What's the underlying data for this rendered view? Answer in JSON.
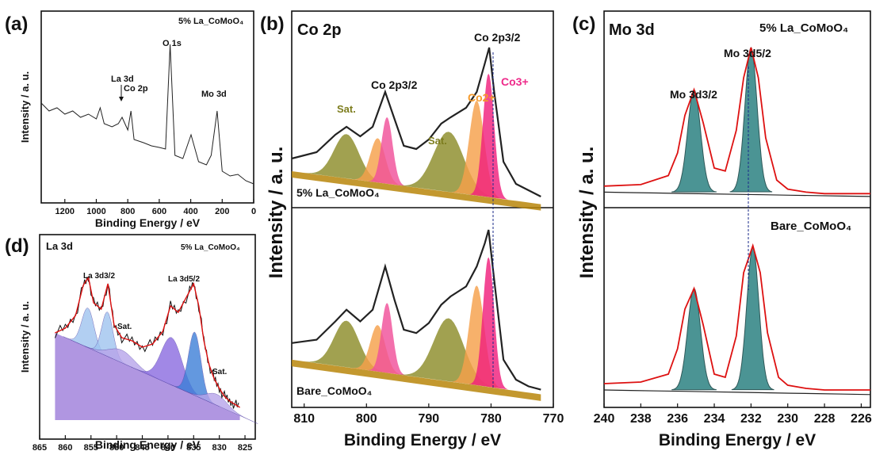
{
  "panels": [
    {
      "letter": "(a)",
      "title": "",
      "sample": "5% La_CoMoO₄",
      "xlabel": "Binding Energy / eV",
      "ylabel": "Intensity / a. u.",
      "xlim": [
        1350,
        0
      ],
      "xticks": [
        1200,
        1000,
        800,
        600,
        400,
        200,
        0
      ],
      "annotations": [
        {
          "text": "O 1s",
          "x": 531,
          "y": 0.85
        },
        {
          "text": "La 3d",
          "x": 836,
          "y": 0.62
        },
        {
          "text": "Co 2p",
          "x": 780,
          "y": 0.55
        },
        {
          "text": "Mo 3d",
          "x": 232,
          "y": 0.6
        }
      ]
    },
    {
      "letter": "(b)",
      "title": "Co 2p",
      "xlabel": "Binding Energy / eV",
      "ylabel": "Intensity / a. u.",
      "xlim": [
        812,
        770
      ],
      "xticks": [
        810,
        800,
        790,
        780,
        770
      ],
      "subpanels": [
        {
          "sample": "5% La_CoMoO₄",
          "annotations": [
            {
              "text": "Sat.",
              "x": 803.2,
              "y": 0.5
            },
            {
              "text": "Co 2p3/2",
              "x": 797,
              "y": 0.7
            },
            {
              "text": "Sat.",
              "x": 787,
              "y": 0.45
            },
            {
              "text": "Co2+",
              "x": 782.5,
              "y": 0.62
            },
            {
              "text": "Co3+",
              "x": 778.5,
              "y": 0.68
            },
            {
              "text": "Co 2p3/2",
              "x": 780.5,
              "y": 0.95
            }
          ]
        },
        {
          "sample": "Bare_CoMoO₄",
          "annotations": []
        }
      ]
    },
    {
      "letter": "(c)",
      "title": "Mo 3d",
      "xlabel": "Binding Energy / eV",
      "ylabel": "Intensity / a. u.",
      "xlim": [
        240,
        225.5
      ],
      "xticks": [
        240,
        238,
        236,
        234,
        232,
        230,
        228,
        226
      ],
      "subpanels": [
        {
          "sample": "5% La_CoMoO₄",
          "annotations": [
            {
              "text": "Mo 3d3/2",
              "x": 235.1,
              "y": 0.62
            },
            {
              "text": "Mo 3d5/2",
              "x": 232.0,
              "y": 0.85
            }
          ]
        },
        {
          "sample": "Bare_CoMoO₄",
          "annotations": []
        }
      ]
    },
    {
      "letter": "(d)",
      "title": "La 3d",
      "sample": "5% La_CoMoO₄",
      "xlabel": "Binding Energy / eV",
      "ylabel": "Intensity / a. u.",
      "xlim": [
        865,
        823
      ],
      "xticks": [
        865,
        860,
        855,
        850,
        845,
        840,
        835,
        830,
        825
      ],
      "annotations": [
        {
          "text": "La 3d3/2",
          "x": 855.5,
          "y": 0.82
        },
        {
          "text": "Sat.",
          "x": 849,
          "y": 0.55
        },
        {
          "text": "La 3d5/2",
          "x": 836,
          "y": 0.8
        },
        {
          "text": "Sat.",
          "x": 829,
          "y": 0.3
        }
      ]
    }
  ],
  "chart_data": [
    {
      "type": "line",
      "panel": "(a)",
      "sample": "5% La_CoMoO₄",
      "xlabel": "Binding Energy / eV",
      "ylabel": "Intensity / a. u.",
      "xlim": [
        1350,
        0
      ],
      "series": [
        {
          "x": [
            1350,
            1300,
            1250,
            1200,
            1150,
            1100,
            1050,
            1000,
            975,
            950,
            900,
            860,
            836,
            800,
            780,
            760,
            700,
            650,
            600,
            560,
            531,
            500,
            450,
            398,
            350,
            300,
            270,
            232,
            200,
            150,
            100,
            50,
            0
          ],
          "y": [
            0.55,
            0.5,
            0.52,
            0.48,
            0.5,
            0.46,
            0.48,
            0.45,
            0.52,
            0.42,
            0.4,
            0.42,
            0.46,
            0.38,
            0.5,
            0.32,
            0.3,
            0.28,
            0.27,
            0.26,
            0.92,
            0.22,
            0.2,
            0.35,
            0.18,
            0.16,
            0.22,
            0.5,
            0.12,
            0.09,
            0.1,
            0.06,
            0.04
          ]
        }
      ]
    },
    {
      "type": "line",
      "panel": "(b) top",
      "sample": "5% La_CoMoO₄",
      "xlabel": "Binding Energy / eV",
      "xlim": [
        812,
        770
      ],
      "series": [
        {
          "x": [
            812,
            808,
            805,
            803.2,
            801,
            799,
            797,
            795.5,
            794,
            792,
            790,
            788,
            786.5,
            784,
            782.3,
            781,
            780.3,
            779.5,
            778,
            776,
            774,
            772
          ],
          "y": [
            0.3,
            0.34,
            0.45,
            0.5,
            0.44,
            0.5,
            0.72,
            0.55,
            0.38,
            0.36,
            0.42,
            0.52,
            0.56,
            0.62,
            0.72,
            0.9,
            1.0,
            0.72,
            0.28,
            0.14,
            0.1,
            0.06
          ]
        }
      ]
    },
    {
      "type": "line",
      "panel": "(b) bottom",
      "sample": "Bare_CoMoO₄",
      "xlabel": "Binding Energy / eV",
      "xlim": [
        812,
        770
      ],
      "series": [
        {
          "x": [
            812,
            808,
            805,
            803.2,
            801,
            799,
            797,
            795.5,
            794,
            792,
            790,
            788,
            786.5,
            784,
            782.3,
            781,
            780.4,
            779.5,
            778,
            776,
            774,
            772
          ],
          "y": [
            0.32,
            0.34,
            0.45,
            0.52,
            0.45,
            0.52,
            0.78,
            0.58,
            0.4,
            0.38,
            0.44,
            0.55,
            0.6,
            0.66,
            0.78,
            0.92,
            1.0,
            0.7,
            0.22,
            0.1,
            0.06,
            0.04
          ]
        }
      ]
    },
    {
      "type": "line",
      "panel": "(c) top",
      "sample": "5% La_CoMoO₄",
      "xlabel": "Binding Energy / eV",
      "xlim": [
        240,
        225.5
      ],
      "series": [
        {
          "x": [
            240,
            238,
            236.5,
            236,
            235.6,
            235.1,
            234.6,
            234,
            233.4,
            232.8,
            232.4,
            232.0,
            231.6,
            231.2,
            230.6,
            230,
            229,
            228,
            226,
            225.5
          ],
          "y": [
            0.08,
            0.09,
            0.15,
            0.3,
            0.55,
            0.72,
            0.5,
            0.2,
            0.18,
            0.45,
            0.8,
            1.0,
            0.8,
            0.4,
            0.12,
            0.06,
            0.04,
            0.03,
            0.03,
            0.03
          ]
        }
      ]
    },
    {
      "type": "line",
      "panel": "(c) bottom",
      "sample": "Bare_CoMoO₄",
      "xlabel": "Binding Energy / eV",
      "xlim": [
        240,
        225.5
      ],
      "series": [
        {
          "x": [
            240,
            238,
            236.5,
            236,
            235.6,
            235.1,
            234.6,
            234,
            233.4,
            232.8,
            232.4,
            231.9,
            231.5,
            231.1,
            230.5,
            230,
            229,
            228,
            226,
            225.5
          ],
          "y": [
            0.08,
            0.09,
            0.14,
            0.3,
            0.55,
            0.68,
            0.45,
            0.14,
            0.12,
            0.38,
            0.78,
            0.95,
            0.78,
            0.4,
            0.12,
            0.07,
            0.05,
            0.04,
            0.04,
            0.04
          ]
        }
      ]
    },
    {
      "type": "line",
      "panel": "(d)",
      "sample": "5% La_CoMoO₄",
      "xlabel": "Binding Energy / eV",
      "ylabel": "Intensity / a. u.",
      "xlim": [
        865,
        823
      ],
      "series": [
        {
          "x": [
            862,
            860,
            858,
            856.5,
            855.5,
            854.5,
            853,
            851.7,
            850.5,
            849,
            847,
            845,
            843,
            841,
            839.5,
            838,
            836,
            835,
            834,
            833,
            832,
            831,
            830,
            829,
            828,
            827,
            826
          ],
          "y": [
            0.55,
            0.58,
            0.66,
            0.85,
            0.9,
            0.74,
            0.7,
            0.86,
            0.6,
            0.52,
            0.5,
            0.46,
            0.48,
            0.56,
            0.72,
            0.68,
            0.8,
            0.86,
            0.72,
            0.5,
            0.35,
            0.26,
            0.2,
            0.15,
            0.12,
            0.1,
            0.08
          ]
        }
      ]
    }
  ]
}
